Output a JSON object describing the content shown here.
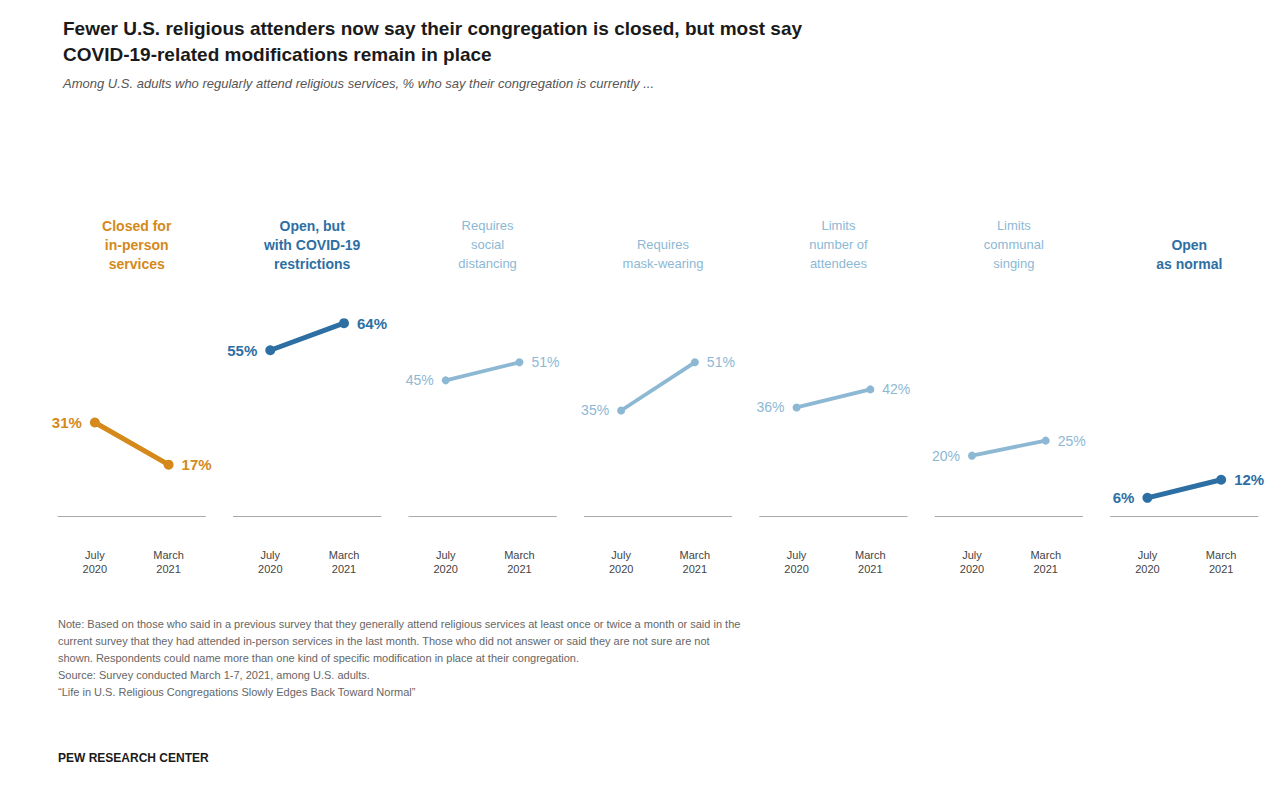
{
  "chart_data": {
    "type": "line",
    "title": "Fewer U.S. religious attenders now say their congregation is closed, but most say\nCOVID-19-related modifications remain in place",
    "subtitle": "Among U.S. adults who regularly attend religious services, % who say their congregation is currently ...",
    "note": "Note: Based on those who said in a previous survey that they generally attend religious services at least once or twice a month or said in the\ncurrent survey that they had attended in-person services in the last month. Those who did not answer or said they are not sure are not\nshown. Respondents could name more than one kind of specific modification in place at their congregation.\nSource: Survey conducted March 1-7, 2021, among U.S. adults.\n“Life in U.S. Religious Congregations Slowly Edges Back Toward Normal”",
    "source": "PEW RESEARCH CENTER",
    "categories": [
      "July\n2020",
      "March\n2021"
    ],
    "series": [
      {
        "name": "Closed for\nin-person\nservices",
        "color": "#d4891a",
        "line_style": "thick",
        "values": [
          31,
          17
        ],
        "value_labels": [
          "31%",
          "17%"
        ]
      },
      {
        "name": "Open, but\nwith COVID-19\nrestrictions",
        "color": "#2e6fa3",
        "line_style": "thick",
        "values": [
          55,
          64
        ],
        "value_labels": [
          "55%",
          "64%"
        ]
      },
      {
        "name": "Requires\nsocial\ndistancing",
        "color": "#8db8d4",
        "line_style": "solid",
        "values": [
          45,
          51
        ],
        "value_labels": [
          "45%",
          "51%"
        ]
      },
      {
        "name": "Requires\nmask-wearing",
        "color": "#8db8d4",
        "line_style": "solid",
        "values": [
          35,
          51
        ],
        "value_labels": [
          "35%",
          "51%"
        ]
      },
      {
        "name": "Limits\nnumber of\nattendees",
        "color": "#8db8d4",
        "line_style": "solid",
        "values": [
          36,
          42
        ],
        "value_labels": [
          "36%",
          "42%"
        ]
      },
      {
        "name": "Limits\ncommunal\nsinging",
        "color": "#8db8d4",
        "line_style": "solid",
        "values": [
          20,
          25
        ],
        "value_labels": [
          "20%",
          "25%"
        ]
      },
      {
        "name": "Open\nas normal",
        "color": "#2e6fa3",
        "line_style": "thick",
        "values": [
          6,
          12
        ],
        "value_labels": [
          "6%",
          "12%"
        ]
      }
    ],
    "ylim": [
      -8,
      75
    ],
    "data_labels": true,
    "grid": false,
    "tick_labels": "x"
  }
}
